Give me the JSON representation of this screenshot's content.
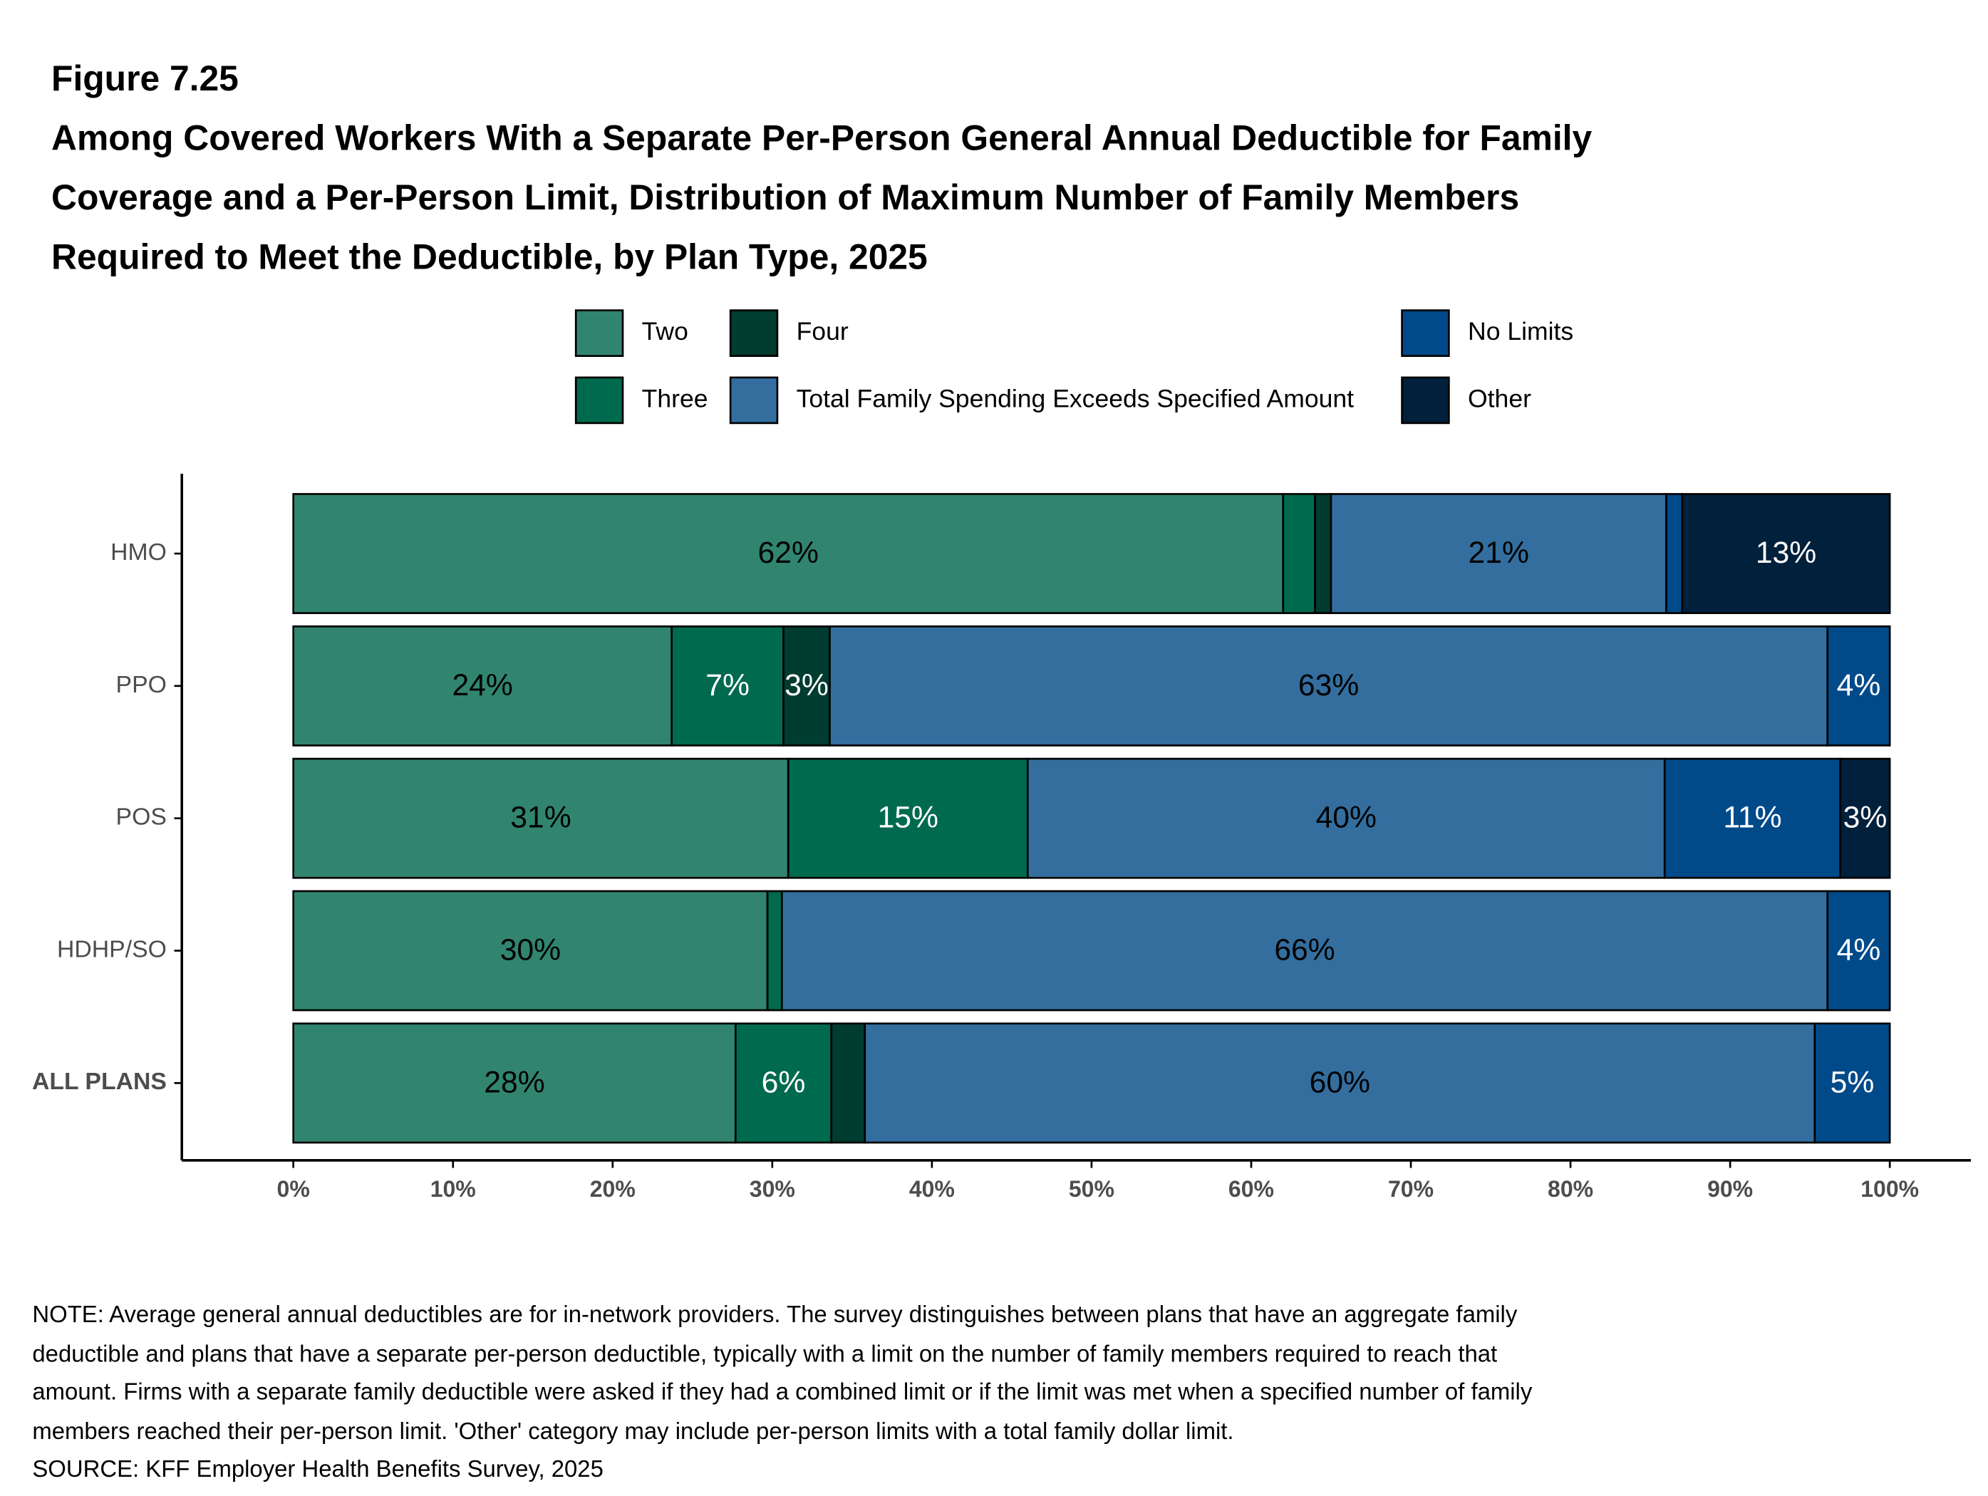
{
  "chart_data": {
    "type": "bar",
    "orientation": "horizontal",
    "stacked": true,
    "figure_label": "Figure 7.25",
    "title": [
      "Among Covered Workers With a Separate Per-Person General Annual Deductible for Family",
      "Coverage and a Per-Person Limit, Distribution of Maximum Number of Family Members",
      "Required to Meet the Deductible, by Plan Type, 2025"
    ],
    "categories": [
      "HMO",
      "PPO",
      "POS",
      "HDHP/SO",
      "ALL PLANS"
    ],
    "series": [
      {
        "name": "Two",
        "color": "#31856f",
        "values": [
          62,
          23.7,
          31,
          29.7,
          27.7
        ],
        "value_labels": [
          "62%",
          "24%",
          "31%",
          "30%",
          "28%"
        ]
      },
      {
        "name": "Three",
        "color": "#006a4e",
        "values": [
          2,
          7,
          15,
          0.9,
          6
        ],
        "value_labels": [
          null,
          "7%",
          "15%",
          null,
          "6%"
        ]
      },
      {
        "name": "Four",
        "color": "#003c2f",
        "values": [
          1,
          2.9,
          0,
          0,
          2.1
        ],
        "value_labels": [
          null,
          "3%",
          null,
          null,
          null
        ]
      },
      {
        "name": "Total Family Spending Exceeds Specified Amount",
        "color": "#336e9e",
        "values": [
          21,
          62.5,
          39.9,
          65.5,
          59.5
        ],
        "value_labels": [
          "21%",
          "63%",
          "40%",
          "66%",
          "60%"
        ]
      },
      {
        "name": "No Limits",
        "color": "#004a8a",
        "values": [
          1,
          3.9,
          11,
          3.9,
          4.7
        ],
        "value_labels": [
          null,
          "4%",
          "11%",
          "4%",
          "5%"
        ]
      },
      {
        "name": "Other",
        "color": "#00203b",
        "values": [
          13,
          0,
          3.1,
          0,
          0
        ],
        "value_labels": [
          "13%",
          null,
          "3%",
          null,
          null
        ]
      }
    ],
    "xlim": [
      0,
      100
    ],
    "xticks": [
      {
        "value": 0,
        "label": "0%"
      },
      {
        "value": 10,
        "label": "10%"
      },
      {
        "value": 20,
        "label": "20%"
      },
      {
        "value": 30,
        "label": "30%"
      },
      {
        "value": 40,
        "label": "40%"
      },
      {
        "value": 50,
        "label": "50%"
      },
      {
        "value": 60,
        "label": "60%"
      },
      {
        "value": 70,
        "label": "70%"
      },
      {
        "value": 80,
        "label": "80%"
      },
      {
        "value": 90,
        "label": "90%"
      },
      {
        "value": 100,
        "label": "100%"
      }
    ],
    "note": [
      "NOTE: Average general annual deductibles are for in-network providers. The survey distinguishes between plans that have an aggregate family",
      "deductible and plans that have a separate per-person deductible, typically with a limit on the number of family members required to reach that",
      "amount. Firms with a separate family deductible were asked if they had a combined limit or if the limit was met when a specified number of family",
      "members reached their per-person limit. 'Other' category may include per-person limits with a total family dollar limit."
    ],
    "source": "SOURCE: KFF Employer Health Benefits Survey, 2025"
  }
}
